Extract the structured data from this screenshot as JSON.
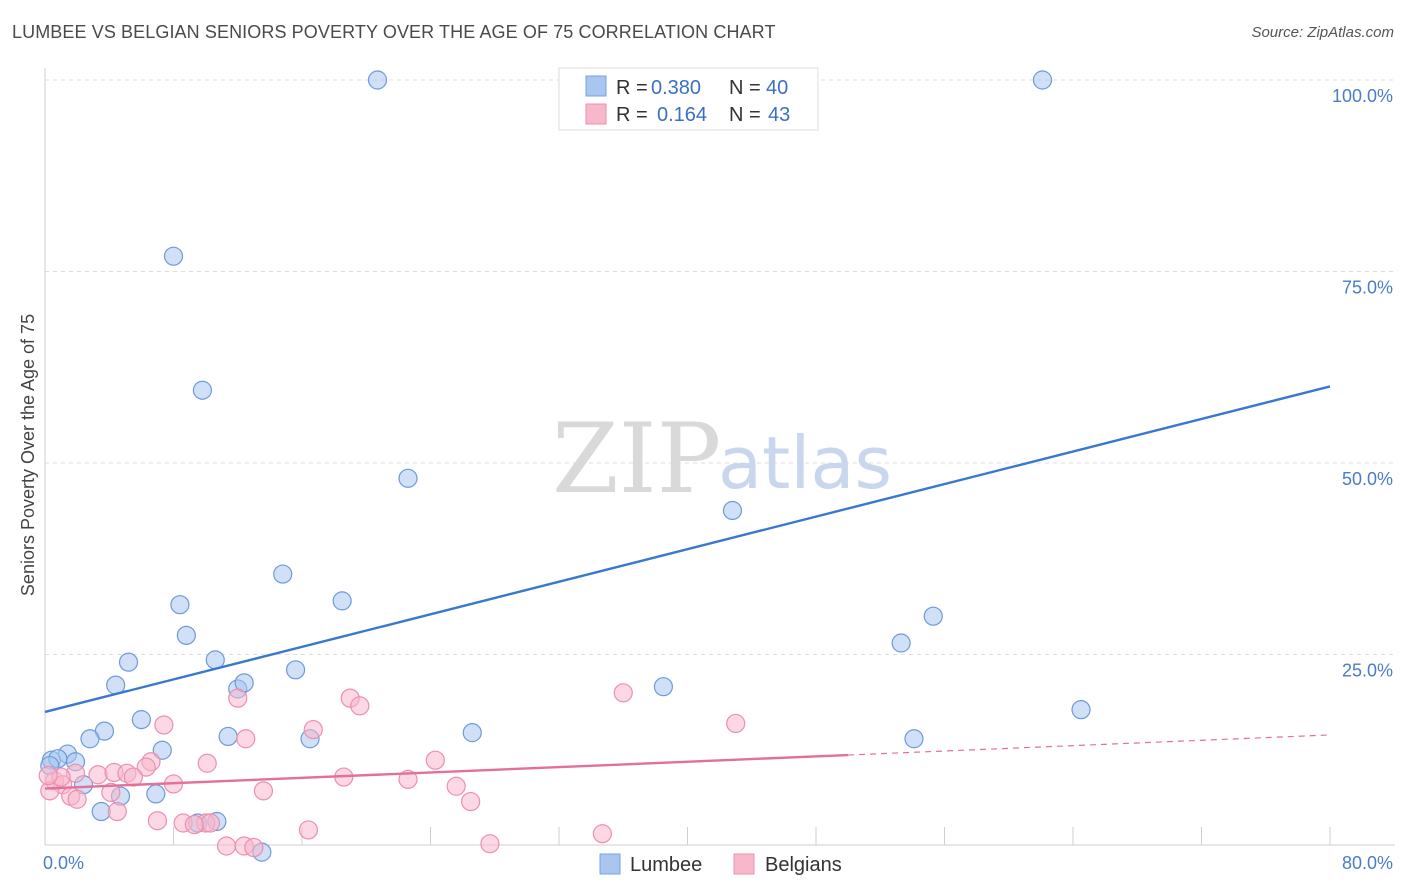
{
  "title": "LUMBEE VS BELGIAN SENIORS POVERTY OVER THE AGE OF 75 CORRELATION CHART",
  "source": "Source: ZipAtlas.com",
  "watermark": {
    "zip": "ZIP",
    "atlas": "atlas"
  },
  "legend_top": {
    "rows": [
      {
        "r_label": "R =",
        "r_value": "0.380",
        "n_label": "N =",
        "n_value": "40",
        "color": "#a8c6f0",
        "stroke": "#7aa3e0"
      },
      {
        "r_label": "R =",
        "r_value": "0.164",
        "n_label": "N =",
        "n_value": "43",
        "color": "#f7b8cc",
        "stroke": "#ec8faf"
      }
    ]
  },
  "chart_data": {
    "type": "scatter",
    "title": "LUMBEE VS BELGIAN SENIORS POVERTY OVER THE AGE OF 75 CORRELATION CHART",
    "xlabel": "",
    "ylabel": "Seniors Poverty Over the Age of 75",
    "xlim": [
      0,
      80
    ],
    "ylim": [
      0,
      100
    ],
    "x_tick_labels": [
      "0.0%",
      "80.0%"
    ],
    "y_ticks": [
      25,
      50,
      75,
      100
    ],
    "y_tick_labels": [
      "25.0%",
      "50.0%",
      "75.0%",
      "100.0%"
    ],
    "grid": true,
    "legend_position": "bottom",
    "series": [
      {
        "name": "Lumbee",
        "color": "#a8c6f0",
        "stroke": "#6f9ad8",
        "line_color": "#3a78d0",
        "trend": {
          "x0": 0,
          "y0": 17.5,
          "x1": 80,
          "y1": 60.0,
          "dashed_from": null
        },
        "points": [
          [
            20.7,
            100
          ],
          [
            62.1,
            100
          ],
          [
            8.0,
            77.0
          ],
          [
            9.8,
            59.5
          ],
          [
            22.6,
            48.0
          ],
          [
            42.8,
            43.8
          ],
          [
            14.8,
            35.5
          ],
          [
            8.4,
            31.5
          ],
          [
            18.5,
            32.0
          ],
          [
            55.3,
            30.0
          ],
          [
            8.8,
            27.5
          ],
          [
            53.3,
            26.5
          ],
          [
            5.2,
            24.0
          ],
          [
            10.6,
            24.3
          ],
          [
            15.6,
            23.0
          ],
          [
            4.4,
            21.0
          ],
          [
            12.0,
            20.5
          ],
          [
            12.4,
            21.3
          ],
          [
            38.5,
            20.8
          ],
          [
            64.5,
            17.8
          ],
          [
            6.0,
            16.5
          ],
          [
            3.7,
            15.0
          ],
          [
            2.8,
            14.0
          ],
          [
            11.4,
            14.3
          ],
          [
            16.5,
            14.0
          ],
          [
            26.6,
            14.8
          ],
          [
            54.1,
            14.0
          ],
          [
            7.3,
            12.5
          ],
          [
            1.4,
            12.0
          ],
          [
            0.4,
            11.2
          ],
          [
            0.8,
            11.4
          ],
          [
            1.9,
            11.0
          ],
          [
            2.4,
            8.0
          ],
          [
            4.7,
            6.5
          ],
          [
            6.9,
            6.8
          ],
          [
            3.5,
            4.5
          ],
          [
            9.5,
            3.0
          ],
          [
            10.7,
            3.2
          ],
          [
            13.5,
            -0.8
          ],
          [
            0.3,
            10.5
          ]
        ]
      },
      {
        "name": "Belgians",
        "color": "#f7b8cc",
        "stroke": "#ec8faf",
        "line_color": "#e3709a",
        "trend": {
          "x0": 0,
          "y0": 7.5,
          "x1": 80,
          "y1": 14.5,
          "dashed_from": 50
        },
        "points": [
          [
            36.0,
            20.0
          ],
          [
            19.0,
            19.3
          ],
          [
            19.6,
            18.3
          ],
          [
            12.0,
            19.3
          ],
          [
            43.0,
            16.0
          ],
          [
            7.4,
            15.8
          ],
          [
            16.7,
            15.2
          ],
          [
            12.5,
            14.0
          ],
          [
            24.3,
            11.2
          ],
          [
            6.6,
            11.0
          ],
          [
            10.1,
            10.8
          ],
          [
            6.3,
            10.3
          ],
          [
            1.9,
            9.5
          ],
          [
            3.3,
            9.3
          ],
          [
            4.3,
            9.6
          ],
          [
            5.1,
            9.5
          ],
          [
            5.5,
            9.0
          ],
          [
            18.6,
            9.0
          ],
          [
            22.6,
            8.7
          ],
          [
            0.6,
            8.5
          ],
          [
            1.1,
            8.0
          ],
          [
            8.0,
            8.1
          ],
          [
            25.6,
            7.8
          ],
          [
            13.6,
            7.2
          ],
          [
            4.1,
            7.0
          ],
          [
            0.3,
            7.2
          ],
          [
            1.6,
            6.5
          ],
          [
            2.0,
            6.1
          ],
          [
            26.5,
            5.8
          ],
          [
            4.5,
            4.5
          ],
          [
            7.0,
            3.3
          ],
          [
            10.0,
            3.0
          ],
          [
            10.3,
            3.0
          ],
          [
            8.6,
            3.0
          ],
          [
            16.4,
            2.1
          ],
          [
            34.7,
            1.6
          ],
          [
            11.3,
            0.0
          ],
          [
            12.4,
            0.0
          ],
          [
            13.0,
            -0.2
          ],
          [
            27.7,
            0.3
          ],
          [
            1.0,
            9.0
          ],
          [
            0.2,
            9.2
          ],
          [
            9.3,
            2.8
          ]
        ]
      }
    ]
  }
}
